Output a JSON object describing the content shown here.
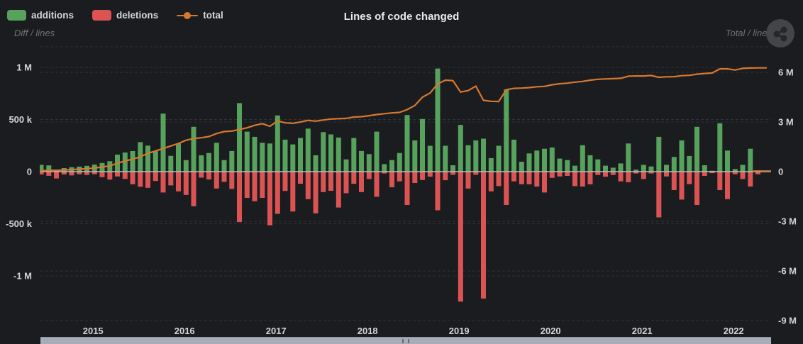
{
  "header": {
    "title": "Lines of code changed",
    "legend": [
      {
        "label": "additions",
        "swatch": "rect",
        "color": "#57a25c"
      },
      {
        "label": "deletions",
        "swatch": "rect",
        "color": "#dc5353"
      },
      {
        "label": "total",
        "swatch": "line-marker",
        "color": "#d7782f"
      }
    ],
    "left_axis_title": "Diff / lines",
    "right_axis_title": "Total / lines"
  },
  "axes": {
    "left": {
      "title": "Diff / lines",
      "ticks": [
        {
          "label": "1 M",
          "value_k": 1000
        },
        {
          "label": "500 k",
          "value_k": 500
        },
        {
          "label": "0",
          "value_k": 0
        },
        {
          "label": "-500 k",
          "value_k": -500
        },
        {
          "label": "-1 M",
          "value_k": -1000
        }
      ]
    },
    "right": {
      "title": "Total / lines",
      "ticks": [
        {
          "label": "6 M",
          "value_M": 6
        },
        {
          "label": "3 M",
          "value_M": 3
        },
        {
          "label": "0",
          "value_M": 0
        },
        {
          "label": "-3 M",
          "value_M": -3
        },
        {
          "label": "-6 M",
          "value_M": -6
        },
        {
          "label": "-9 M",
          "value_M": -9
        }
      ]
    },
    "x": {
      "year_labels": [
        "2015",
        "2016",
        "2017",
        "2018",
        "2019",
        "2020",
        "2021",
        "2022"
      ]
    }
  },
  "chart_data": {
    "type": "bar",
    "subtype": "monthly diverging bars (additions up, deletions down) + cumulative total line on right axis",
    "title": "Lines of code changed",
    "x_start_month": "2014-06",
    "x_interval": "month",
    "x_visible_tick_labels": [
      "2015",
      "2016",
      "2017",
      "2018",
      "2019",
      "2020",
      "2021",
      "2022"
    ],
    "left_axis_label": "Diff / lines",
    "right_axis_label": "Total / lines",
    "left_ylim_k": [
      -1350,
      1300
    ],
    "right_ylim_M": [
      -9.3,
      7.55
    ],
    "grid": "dashed horizontal, both axes",
    "legend_position": "top-left",
    "series": [
      {
        "name": "additions",
        "type": "bar",
        "direction": "up",
        "axis": "left",
        "unit": "k lines",
        "color": "#57a25c",
        "values_k": [
          65,
          60,
          20,
          34,
          43,
          48,
          56,
          68,
          83,
          100,
          163,
          184,
          197,
          283,
          250,
          200,
          557,
          152,
          270,
          111,
          430,
          157,
          179,
          277,
          111,
          198,
          657,
          384,
          334,
          277,
          270,
          539,
          307,
          261,
          323,
          413,
          157,
          379,
          357,
          327,
          118,
          323,
          198,
          168,
          384,
          72,
          111,
          179,
          543,
          300,
          505,
          248,
          989,
          248,
          61,
          448,
          254,
          300,
          316,
          130,
          248,
          789,
          307,
          95,
          175,
          202,
          220,
          232,
          125,
          111,
          57,
          254,
          157,
          118,
          57,
          38,
          79,
          270,
          20,
          65,
          50,
          334,
          65,
          141,
          300,
          150,
          430,
          61,
          9,
          464,
          202,
          25,
          65,
          220,
          10
        ]
      },
      {
        "name": "deletions",
        "type": "bar",
        "direction": "down",
        "axis": "left",
        "unit": "k lines",
        "color": "#dc5353",
        "values_k": [
          27,
          40,
          65,
          27,
          36,
          25,
          32,
          25,
          53,
          76,
          46,
          70,
          121,
          145,
          155,
          90,
          200,
          132,
          189,
          223,
          332,
          57,
          75,
          162,
          98,
          166,
          484,
          252,
          284,
          252,
          514,
          405,
          185,
          382,
          116,
          264,
          400,
          196,
          184,
          344,
          207,
          116,
          196,
          71,
          241,
          18,
          150,
          93,
          320,
          109,
          80,
          48,
          371,
          82,
          30,
          1246,
          162,
          30,
          1217,
          189,
          139,
          320,
          93,
          121,
          121,
          143,
          200,
          60,
          46,
          41,
          139,
          143,
          121,
          32,
          48,
          32,
          93,
          102,
          18,
          71,
          18,
          439,
          46,
          177,
          268,
          120,
          320,
          41,
          14,
          177,
          264,
          25,
          71,
          143,
          25
        ]
      },
      {
        "name": "total",
        "type": "line",
        "axis": "right",
        "unit": "M lines",
        "color": "#d7782f",
        "values_M": [
          0.05,
          0.08,
          0.08,
          0.1,
          0.12,
          0.15,
          0.18,
          0.22,
          0.28,
          0.35,
          0.5,
          0.65,
          0.75,
          0.9,
          1.1,
          1.25,
          1.4,
          1.55,
          1.7,
          1.9,
          2.0,
          2.05,
          2.12,
          2.3,
          2.42,
          2.45,
          2.55,
          2.65,
          2.8,
          2.9,
          2.74,
          3.07,
          2.95,
          2.92,
          3.0,
          3.1,
          3.05,
          3.12,
          3.18,
          3.2,
          3.22,
          3.3,
          3.32,
          3.38,
          3.45,
          3.5,
          3.55,
          3.58,
          3.75,
          4.0,
          4.5,
          4.75,
          5.3,
          5.53,
          5.5,
          4.81,
          4.9,
          5.17,
          4.31,
          4.25,
          4.24,
          4.95,
          5.03,
          5.05,
          5.08,
          5.13,
          5.15,
          5.25,
          5.31,
          5.35,
          5.41,
          5.45,
          5.53,
          5.58,
          5.6,
          5.62,
          5.64,
          5.77,
          5.78,
          5.78,
          5.81,
          5.7,
          5.73,
          5.74,
          5.8,
          5.82,
          5.89,
          5.93,
          5.96,
          6.21,
          6.21,
          6.14,
          6.24,
          6.26,
          6.27
        ]
      }
    ]
  },
  "colors": {
    "background": "#1a1c1f",
    "grid": "#2f3237",
    "zero_line": "#b9bcbe",
    "tick_text": "#d3d4d6",
    "subtitle_text": "#6f7276",
    "scrollbar_thumb": "#a6adb8",
    "menu_circle": "#46484c"
  },
  "scrollbar": {
    "present": true,
    "orientation": "horizontal",
    "thumb_extent": "full width"
  }
}
